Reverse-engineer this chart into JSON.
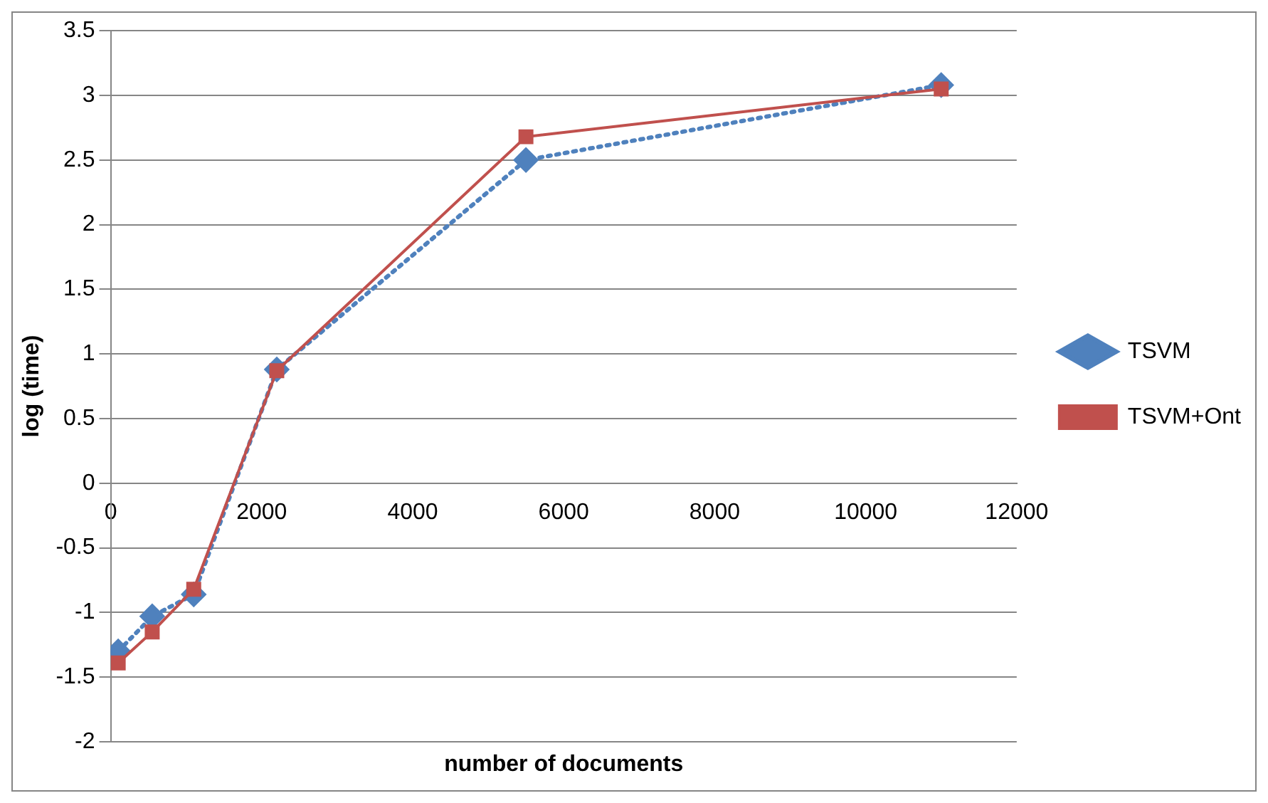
{
  "chart_data": {
    "type": "line",
    "xlabel": "number of documents",
    "ylabel": "log (time)",
    "x": [
      100,
      550,
      1100,
      2200,
      5500,
      11000
    ],
    "series": [
      {
        "name": "TSVM",
        "color": "#4f81bd",
        "values": [
          -1.3,
          -1.03,
          -0.86,
          0.88,
          2.5,
          3.08
        ],
        "marker": "diamond",
        "line_style": "dotted"
      },
      {
        "name": "TSVM+Ont",
        "color": "#c0504d",
        "values": [
          -1.39,
          -1.15,
          -0.82,
          0.87,
          2.68,
          3.05
        ],
        "marker": "square",
        "line_style": "solid"
      }
    ],
    "xlim": [
      0,
      12000
    ],
    "xticks": [
      0,
      2000,
      4000,
      6000,
      8000,
      10000,
      12000
    ],
    "ylim": [
      -2,
      3.5
    ],
    "yticks": [
      -2,
      -1.5,
      -1,
      -0.5,
      0,
      0.5,
      1,
      1.5,
      2,
      2.5,
      3,
      3.5
    ],
    "grid": "y",
    "legend": "right"
  }
}
